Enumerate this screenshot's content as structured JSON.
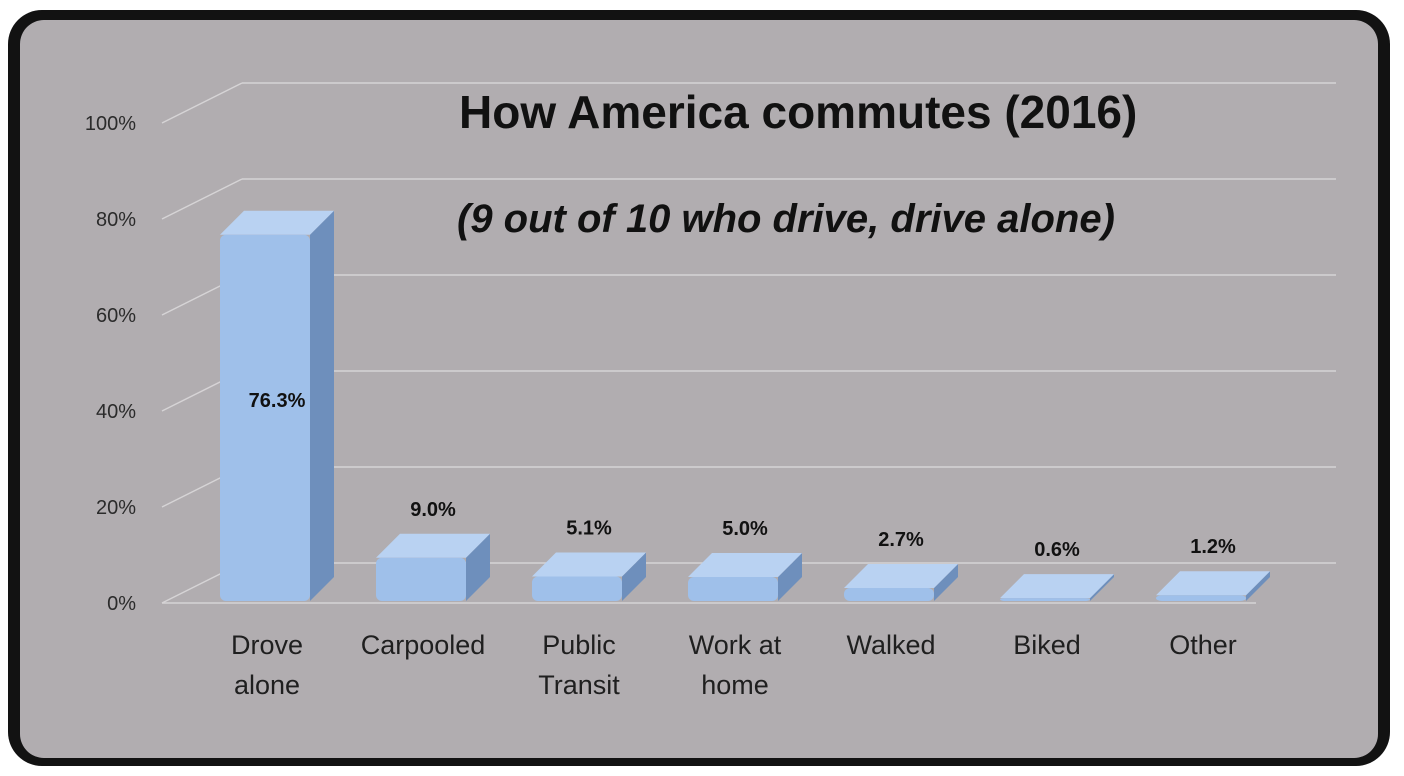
{
  "chart_data": {
    "type": "bar",
    "title": "How America commutes (2016)",
    "subtitle": "(9 out of 10 who drive, drive alone)",
    "categories": [
      "Drove alone",
      "Carpooled",
      "Public Transit",
      "Work at home",
      "Walked",
      "Biked",
      "Other"
    ],
    "category_lines": [
      [
        "Drove",
        "alone"
      ],
      [
        "Carpooled"
      ],
      [
        "Public",
        "Transit"
      ],
      [
        "Work at",
        "home"
      ],
      [
        "Walked"
      ],
      [
        "Biked"
      ],
      [
        "Other"
      ]
    ],
    "values": [
      76.3,
      9.0,
      5.1,
      5.0,
      2.7,
      0.6,
      1.2
    ],
    "data_labels": [
      "76.3%",
      "9.0%",
      "5.1%",
      "5.0%",
      "2.7%",
      "0.6%",
      "1.2%"
    ],
    "yticks": [
      0,
      20,
      40,
      60,
      80,
      100
    ],
    "ytick_labels": [
      "0%",
      "20%",
      "40%",
      "60%",
      "80%",
      "100%"
    ],
    "ylim": [
      0,
      100
    ],
    "xlabel": "",
    "ylabel": "",
    "grid": true,
    "legend": "none",
    "style": "3d-bar",
    "colors": {
      "panel_background": "#b1adb0",
      "frame": "#121212",
      "bar_front": "#9fc0ea",
      "bar_top": "#b9d2f2",
      "bar_side": "#6e8fbc",
      "gridline": "#d6d3d5"
    }
  }
}
